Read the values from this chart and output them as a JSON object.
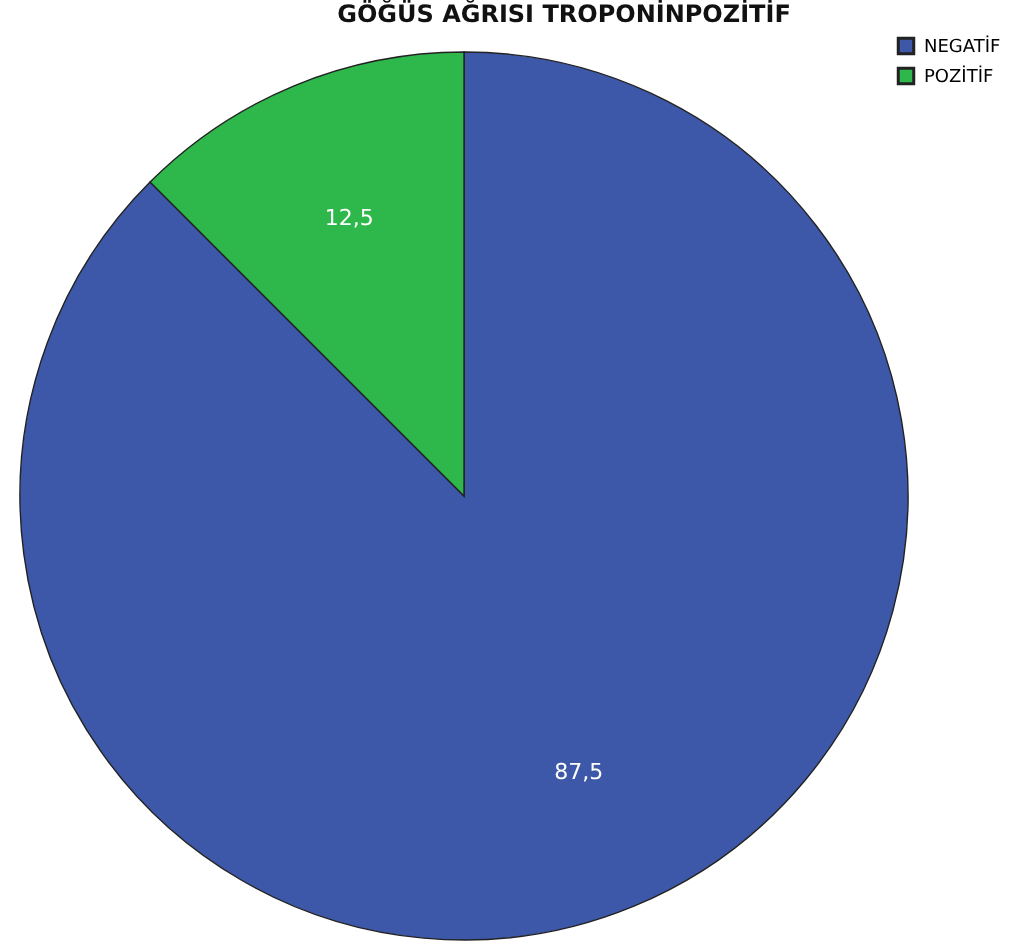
{
  "chart_data": {
    "type": "pie",
    "title": "GÖĞÜS AĞRISI TROPONİNPOZİTİF",
    "categories": [
      "NEGATİF",
      "POZİTİF"
    ],
    "values": [
      87.5,
      12.5
    ],
    "colors": [
      "#3e58a9",
      "#2eb84b"
    ],
    "value_labels": [
      "87,5",
      "12,5"
    ],
    "legend": "top right"
  }
}
